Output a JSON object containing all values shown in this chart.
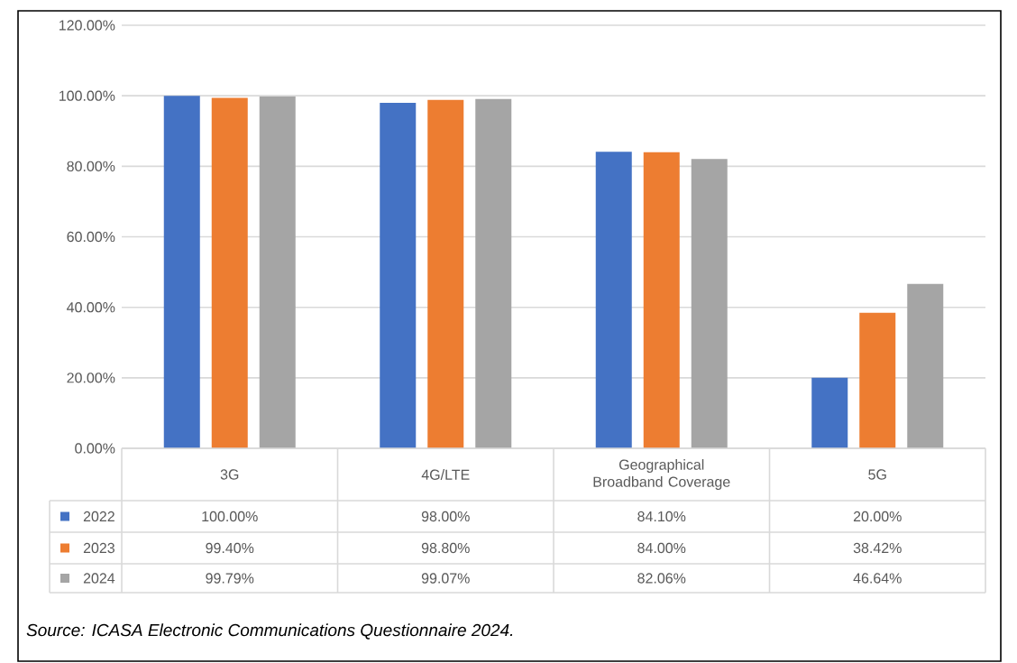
{
  "chart_data": {
    "type": "bar",
    "categories": [
      "3G",
      "4G/LTE",
      "Geographical Broadband Coverage",
      "5G"
    ],
    "series": [
      {
        "name": "2022",
        "color": "#4472c4",
        "values": [
          100.0,
          98.0,
          84.1,
          20.0
        ],
        "value_labels": [
          "100.00%",
          "98.00%",
          "84.10%",
          "20.00%"
        ]
      },
      {
        "name": "2023",
        "color": "#ed7d31",
        "values": [
          99.4,
          98.8,
          84.0,
          38.42
        ],
        "value_labels": [
          "99.40%",
          "98.80%",
          "84.00%",
          "38.42%"
        ]
      },
      {
        "name": "2024",
        "color": "#a5a5a5",
        "values": [
          99.79,
          99.07,
          82.06,
          46.64
        ],
        "value_labels": [
          "99.79%",
          "99.07%",
          "82.06%",
          "46.64%"
        ]
      }
    ],
    "ylim": [
      0,
      120
    ],
    "yticks": [
      {
        "value": 0,
        "label": "0.00%"
      },
      {
        "value": 20,
        "label": "20.00%"
      },
      {
        "value": 40,
        "label": "40.00%"
      },
      {
        "value": 60,
        "label": "60.00%"
      },
      {
        "value": 80,
        "label": "80.00%"
      },
      {
        "value": 100,
        "label": "100.00%"
      },
      {
        "value": 120,
        "label": "120.00%"
      }
    ],
    "grid": "y",
    "legend": "bottom",
    "annotations": [
      "Source: ICASA Electronic Communications Questionnaire 2024."
    ]
  }
}
